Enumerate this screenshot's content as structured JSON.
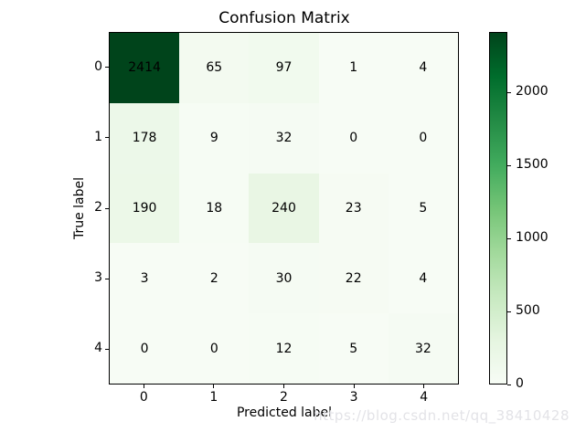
{
  "chart_data": {
    "type": "heatmap",
    "title": "Confusion Matrix",
    "xlabel": "Predicted label",
    "ylabel": "True label",
    "x_tick_labels": [
      "0",
      "1",
      "2",
      "3",
      "4"
    ],
    "y_tick_labels": [
      "0",
      "1",
      "2",
      "3",
      "4"
    ],
    "matrix": [
      [
        2414,
        65,
        97,
        1,
        4
      ],
      [
        178,
        9,
        32,
        0,
        0
      ],
      [
        190,
        18,
        240,
        23,
        5
      ],
      [
        3,
        2,
        30,
        22,
        4
      ],
      [
        0,
        0,
        12,
        5,
        32
      ]
    ],
    "vmin": 0,
    "vmax": 2414,
    "colormap": "Greens",
    "colorbar_ticks": [
      0,
      500,
      1000,
      1500,
      2000
    ],
    "colorbar_position": "right",
    "grid": false
  },
  "colors": {
    "background": "#ffffff",
    "cell_text": "#000000",
    "axis": "#000000",
    "watermark_text": "#e3e3e7",
    "cmap_stops": [
      [
        0.0,
        "#f7fcf5"
      ],
      [
        0.125,
        "#e5f5e0"
      ],
      [
        0.25,
        "#c7e9c0"
      ],
      [
        0.375,
        "#a1d99b"
      ],
      [
        0.5,
        "#74c476"
      ],
      [
        0.625,
        "#41ab5d"
      ],
      [
        0.75,
        "#238b45"
      ],
      [
        0.875,
        "#006d2c"
      ],
      [
        1.0,
        "#00441b"
      ]
    ]
  },
  "watermark": "https://blog.csdn.net/qq_38410428"
}
